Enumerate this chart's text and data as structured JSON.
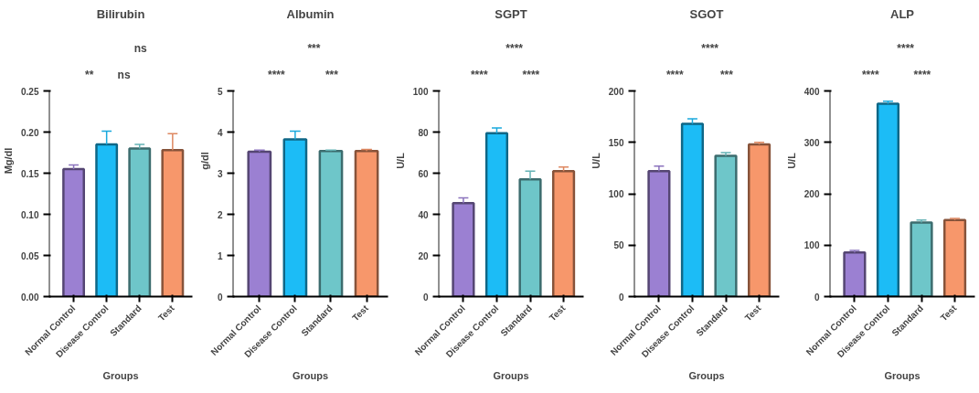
{
  "chart_data": [
    {
      "type": "bar",
      "title": "Bilirubin",
      "xlabel": "Groups",
      "ylabel": "Mg/dl",
      "categories": [
        "Normal Control",
        "Disease Control",
        "Standard",
        "Test"
      ],
      "values": [
        0.155,
        0.185,
        0.18,
        0.178
      ],
      "errors": [
        [
          0.155,
          0.16
        ],
        [
          0.185,
          0.201
        ],
        [
          0.18,
          0.185
        ],
        [
          0.178,
          0.198
        ]
      ],
      "colors": [
        "#9b80d2",
        "#1cbcf6",
        "#6ec6c9",
        "#f7976b"
      ],
      "ylim": [
        0,
        0.25
      ],
      "yticks": [
        {
          "value": 0,
          "label": "0.00"
        },
        {
          "value": 0.05,
          "label": "0.05"
        },
        {
          "value": 0.1,
          "label": "0.10"
        },
        {
          "value": 0.15,
          "label": "0.15"
        },
        {
          "value": 0.2,
          "label": "0.20"
        },
        {
          "value": 0.25,
          "label": "0.25"
        }
      ],
      "grid": false,
      "annotations": [
        "**",
        "ns",
        "ns"
      ]
    },
    {
      "type": "bar",
      "title": "Albumin",
      "xlabel": "Groups",
      "ylabel": "g/dl",
      "categories": [
        "Normal Control",
        "Disease Control",
        "Standard",
        "Test"
      ],
      "values": [
        3.52,
        3.82,
        3.54,
        3.54
      ],
      "errors": [
        [
          3.52,
          3.56
        ],
        [
          3.82,
          4.02
        ],
        [
          3.54,
          3.56
        ],
        [
          3.54,
          3.58
        ]
      ],
      "colors": [
        "#9b80d2",
        "#1cbcf6",
        "#6ec6c9",
        "#f7976b"
      ],
      "ylim": [
        0,
        5
      ],
      "yticks": [
        0,
        1,
        2,
        3,
        4,
        5
      ],
      "grid": false,
      "annotations": [
        "****",
        "***",
        "***"
      ]
    },
    {
      "type": "bar",
      "title": "SGPT",
      "xlabel": "Groups",
      "ylabel": "U/L",
      "categories": [
        "Normal Control",
        "Disease Control",
        "Standard",
        "Test"
      ],
      "values": [
        45.5,
        79.5,
        57,
        61
      ],
      "errors": [
        [
          45.5,
          48
        ],
        [
          79.5,
          82
        ],
        [
          57,
          61
        ],
        [
          61,
          63
        ]
      ],
      "colors": [
        "#9b80d2",
        "#1cbcf6",
        "#6ec6c9",
        "#f7976b"
      ],
      "ylim": [
        0,
        100
      ],
      "yticks": [
        0,
        20,
        40,
        60,
        80,
        100
      ],
      "grid": false,
      "annotations": [
        "****",
        "****",
        "****"
      ]
    },
    {
      "type": "bar",
      "title": "SGOT",
      "xlabel": "Groups",
      "ylabel": "U/L",
      "categories": [
        "Normal Control",
        "Disease Control",
        "Standard",
        "Test"
      ],
      "values": [
        122,
        168,
        137,
        148
      ],
      "errors": [
        [
          122,
          127
        ],
        [
          168,
          173
        ],
        [
          137,
          140
        ],
        [
          148,
          150
        ]
      ],
      "colors": [
        "#9b80d2",
        "#1cbcf6",
        "#6ec6c9",
        "#f7976b"
      ],
      "ylim": [
        0,
        200
      ],
      "yticks": [
        0,
        50,
        100,
        150,
        200
      ],
      "grid": false,
      "annotations": [
        "****",
        "****",
        "***"
      ]
    },
    {
      "type": "bar",
      "title": "ALP",
      "xlabel": "Groups",
      "ylabel": "U/L",
      "categories": [
        "Normal Control",
        "Disease Control",
        "Standard",
        "Test"
      ],
      "values": [
        86,
        375,
        144,
        149
      ],
      "errors": [
        [
          86,
          90
        ],
        [
          375,
          380
        ],
        [
          144,
          149
        ],
        [
          149,
          152
        ]
      ],
      "colors": [
        "#9b80d2",
        "#1cbcf6",
        "#6ec6c9",
        "#f7976b"
      ],
      "ylim": [
        0,
        400
      ],
      "yticks": [
        0,
        100,
        200,
        300,
        400
      ],
      "grid": false,
      "annotations": [
        "****",
        "****",
        "****"
      ]
    }
  ]
}
